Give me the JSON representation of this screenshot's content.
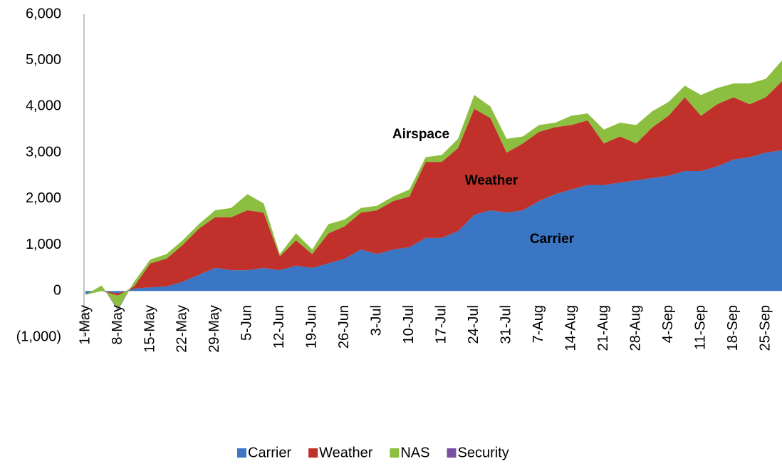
{
  "chart_data": {
    "type": "stacked_area",
    "categories": [
      "1-May",
      null,
      "8-May",
      null,
      "15-May",
      null,
      "22-May",
      null,
      "29-May",
      null,
      "5-Jun",
      null,
      "12-Jun",
      null,
      "19-Jun",
      null,
      "26-Jun",
      null,
      "3-Jul",
      null,
      "10-Jul",
      null,
      "17-Jul",
      null,
      "24-Jul",
      null,
      "31-Jul",
      null,
      "7-Aug",
      null,
      "14-Aug",
      null,
      "21-Aug",
      null,
      "28-Aug",
      null,
      "4-Sep",
      null,
      "11-Sep",
      null,
      "18-Sep",
      null,
      "25-Sep",
      null
    ],
    "series": [
      {
        "name": "Carrier",
        "color": "#3a76c4",
        "values": [
          -80,
          0,
          -50,
          50,
          80,
          100,
          200,
          350,
          500,
          450,
          450,
          500,
          450,
          550,
          500,
          600,
          700,
          900,
          800,
          900,
          950,
          1150,
          1150,
          1300,
          1650,
          1750,
          1700,
          1750,
          1950,
          2100,
          2200,
          2300,
          2300,
          2350,
          2400,
          2450,
          2500,
          2600,
          2600,
          2700,
          2850,
          2900,
          3000,
          3050
        ]
      },
      {
        "name": "Weather",
        "color": "#c0312b",
        "values": [
          0,
          0,
          -50,
          50,
          520,
          600,
          800,
          1000,
          1100,
          1150,
          1300,
          1200,
          300,
          550,
          300,
          650,
          700,
          800,
          950,
          1050,
          1100,
          1650,
          1650,
          1800,
          2300,
          2000,
          1300,
          1450,
          1500,
          1450,
          1400,
          1400,
          900,
          1000,
          800,
          1100,
          1300,
          1600,
          1200,
          1350,
          1350,
          1150,
          1200,
          1500
        ]
      },
      {
        "name": "NAS",
        "color": "#8cbf3f",
        "values": [
          0,
          120,
          -300,
          100,
          80,
          100,
          100,
          100,
          150,
          200,
          350,
          200,
          50,
          150,
          100,
          200,
          150,
          100,
          100,
          100,
          150,
          100,
          150,
          200,
          300,
          250,
          300,
          150,
          150,
          100,
          200,
          150,
          300,
          300,
          400,
          350,
          300,
          250,
          450,
          350,
          300,
          450,
          400,
          450
        ]
      },
      {
        "name": "Security",
        "color": "#7b4fa0",
        "values": [
          0,
          0,
          -20,
          0,
          0,
          0,
          0,
          0,
          0,
          0,
          0,
          0,
          0,
          0,
          0,
          0,
          0,
          0,
          0,
          0,
          0,
          0,
          0,
          0,
          0,
          0,
          0,
          0,
          0,
          0,
          0,
          0,
          0,
          0,
          0,
          0,
          0,
          0,
          0,
          0,
          0,
          0,
          0,
          0
        ]
      }
    ],
    "ylim": [
      -1000,
      6000
    ],
    "yticks": [
      {
        "value": -1000,
        "label": "(1,000)"
      },
      0,
      {
        "value": 1000,
        "label": "1,000"
      },
      {
        "value": 2000,
        "label": "2,000"
      },
      {
        "value": 3000,
        "label": "3,000"
      },
      {
        "value": 4000,
        "label": "4,000"
      },
      {
        "value": 5000,
        "label": "5,000"
      },
      {
        "value": 6000,
        "label": "6,000"
      }
    ],
    "grid": false,
    "legend": "bottom",
    "annotations": [
      "Airspace",
      "Weather",
      "Carrier"
    ]
  }
}
